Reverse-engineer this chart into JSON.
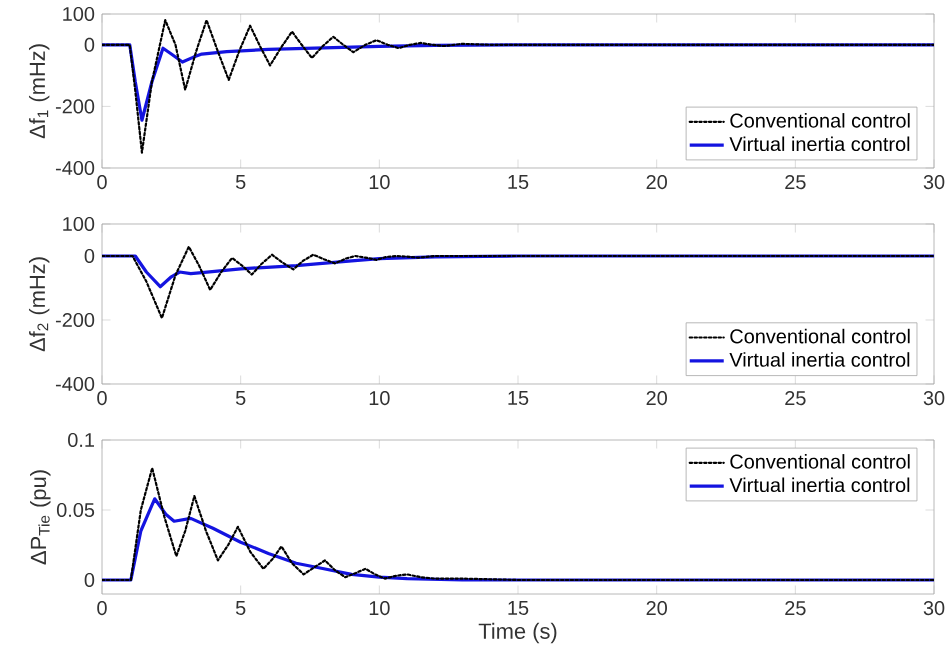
{
  "chart_data": [
    {
      "type": "line",
      "ylabel": "Δf$_{1}$ (mHz)",
      "xlim": [
        0,
        30
      ],
      "ylim": [
        -400,
        100
      ],
      "xticks": [
        0,
        5,
        10,
        15,
        20,
        25,
        30
      ],
      "yticks": [
        -400,
        -200,
        0,
        100
      ],
      "legend": "bottom right",
      "marker": "none",
      "series": [
        {
          "name": "Conventional control",
          "color": "#000000",
          "line_style": "dotted",
          "x": [
            0,
            1.0,
            1.2,
            1.44,
            1.8,
            2.28,
            2.65,
            3.0,
            3.4,
            3.77,
            4.17,
            4.57,
            4.95,
            5.34,
            5.7,
            6.06,
            6.45,
            6.85,
            7.2,
            7.57,
            7.95,
            8.34,
            8.7,
            9.06,
            9.5,
            9.9,
            10.3,
            10.7,
            11.1,
            11.5,
            11.9,
            12.3,
            12.7,
            13.0,
            14.0,
            15.0,
            30.0
          ],
          "values": [
            0,
            0,
            -150,
            -350,
            -120,
            80,
            0,
            -146,
            -20,
            80,
            -20,
            -114,
            -20,
            62,
            -5,
            -67,
            -10,
            43,
            0,
            -43,
            -5,
            26,
            0,
            -24,
            0,
            15,
            0,
            -11,
            0,
            6,
            0,
            -4,
            0,
            3,
            0,
            0,
            0
          ]
        },
        {
          "name": "Virtual inertia control",
          "color": "#1414e0",
          "line_style": "solid",
          "x": [
            0,
            1.0,
            1.2,
            1.44,
            1.8,
            2.2,
            2.5,
            2.9,
            3.3,
            3.6,
            4.5,
            6.0,
            8.0,
            10.0,
            12.0,
            15.0,
            30.0
          ],
          "values": [
            0,
            0,
            -120,
            -245,
            -120,
            -11,
            -30,
            -56,
            -40,
            -30,
            -22,
            -15,
            -10,
            -5,
            -2,
            0,
            0
          ]
        }
      ]
    },
    {
      "type": "line",
      "ylabel": "Δf$_{2}$ (mHz)",
      "xlim": [
        0,
        30
      ],
      "ylim": [
        -400,
        100
      ],
      "xticks": [
        0,
        5,
        10,
        15,
        20,
        25,
        30
      ],
      "yticks": [
        -400,
        -200,
        0,
        100
      ],
      "legend": "bottom right",
      "marker": "none",
      "series": [
        {
          "name": "Conventional control",
          "color": "#000000",
          "line_style": "dotted",
          "x": [
            0,
            1.1,
            1.6,
            2.16,
            2.65,
            3.13,
            3.5,
            3.9,
            4.3,
            4.69,
            5.05,
            5.4,
            5.75,
            6.13,
            6.5,
            6.9,
            7.25,
            7.62,
            8.0,
            8.4,
            8.8,
            9.13,
            9.5,
            9.9,
            10.25,
            10.6,
            11.0,
            11.4,
            12.0,
            30.0
          ],
          "values": [
            0,
            0,
            -80,
            -194,
            -60,
            29,
            -30,
            -106,
            -50,
            -6,
            -30,
            -58,
            -25,
            4,
            -20,
            -42,
            -15,
            4,
            -10,
            -23,
            -8,
            0,
            -5,
            -12,
            -3,
            0,
            -2,
            -5,
            0,
            0
          ]
        },
        {
          "name": "Virtual inertia control",
          "color": "#1414e0",
          "line_style": "solid",
          "x": [
            0,
            1.2,
            1.6,
            2.1,
            2.5,
            2.8,
            3.2,
            3.6,
            5.0,
            7.0,
            9.0,
            10.0,
            12.0,
            15.0,
            30.0
          ],
          "values": [
            0,
            0,
            -50,
            -96,
            -65,
            -50,
            -55,
            -52,
            -40,
            -30,
            -15,
            -8,
            -3,
            0,
            0
          ]
        }
      ]
    },
    {
      "type": "line",
      "ylabel": "ΔP$_{Tie}$ (pu)",
      "xlabel": "Time (s)",
      "xlim": [
        0,
        30
      ],
      "ylim": [
        -0.01,
        0.1
      ],
      "xticks": [
        0,
        5,
        10,
        15,
        20,
        25,
        30
      ],
      "yticks": [
        0,
        0.05,
        0.1
      ],
      "legend": "top right",
      "marker": "none",
      "series": [
        {
          "name": "Conventional control",
          "color": "#000000",
          "line_style": "dotted",
          "x": [
            0,
            1.04,
            1.4,
            1.81,
            2.25,
            2.68,
            3.0,
            3.33,
            3.75,
            4.18,
            4.55,
            4.9,
            5.35,
            5.82,
            6.15,
            6.47,
            6.85,
            7.27,
            7.65,
            8.04,
            8.4,
            8.77,
            9.15,
            9.5,
            9.85,
            10.2,
            10.6,
            11.0,
            11.5,
            12.0,
            13.0,
            15.0,
            30.0
          ],
          "values": [
            0,
            0,
            0.05,
            0.08,
            0.045,
            0.017,
            0.035,
            0.06,
            0.035,
            0.014,
            0.025,
            0.038,
            0.02,
            0.008,
            0.015,
            0.024,
            0.012,
            0.004,
            0.009,
            0.014,
            0.007,
            0.002,
            0.005,
            0.008,
            0.004,
            0.001,
            0.003,
            0.004,
            0.002,
            0.001,
            0.001,
            0,
            0
          ]
        },
        {
          "name": "Virtual inertia control",
          "color": "#1414e0",
          "line_style": "solid",
          "x": [
            0,
            1.04,
            1.4,
            1.9,
            2.3,
            2.6,
            3.2,
            4.0,
            5.0,
            6.0,
            7.0,
            8.0,
            9.0,
            10.0,
            11.0,
            13.0,
            30.0
          ],
          "values": [
            0,
            0,
            0.035,
            0.058,
            0.047,
            0.042,
            0.044,
            0.037,
            0.027,
            0.019,
            0.012,
            0.008,
            0.004,
            0.002,
            0.001,
            0,
            0
          ]
        }
      ]
    }
  ]
}
